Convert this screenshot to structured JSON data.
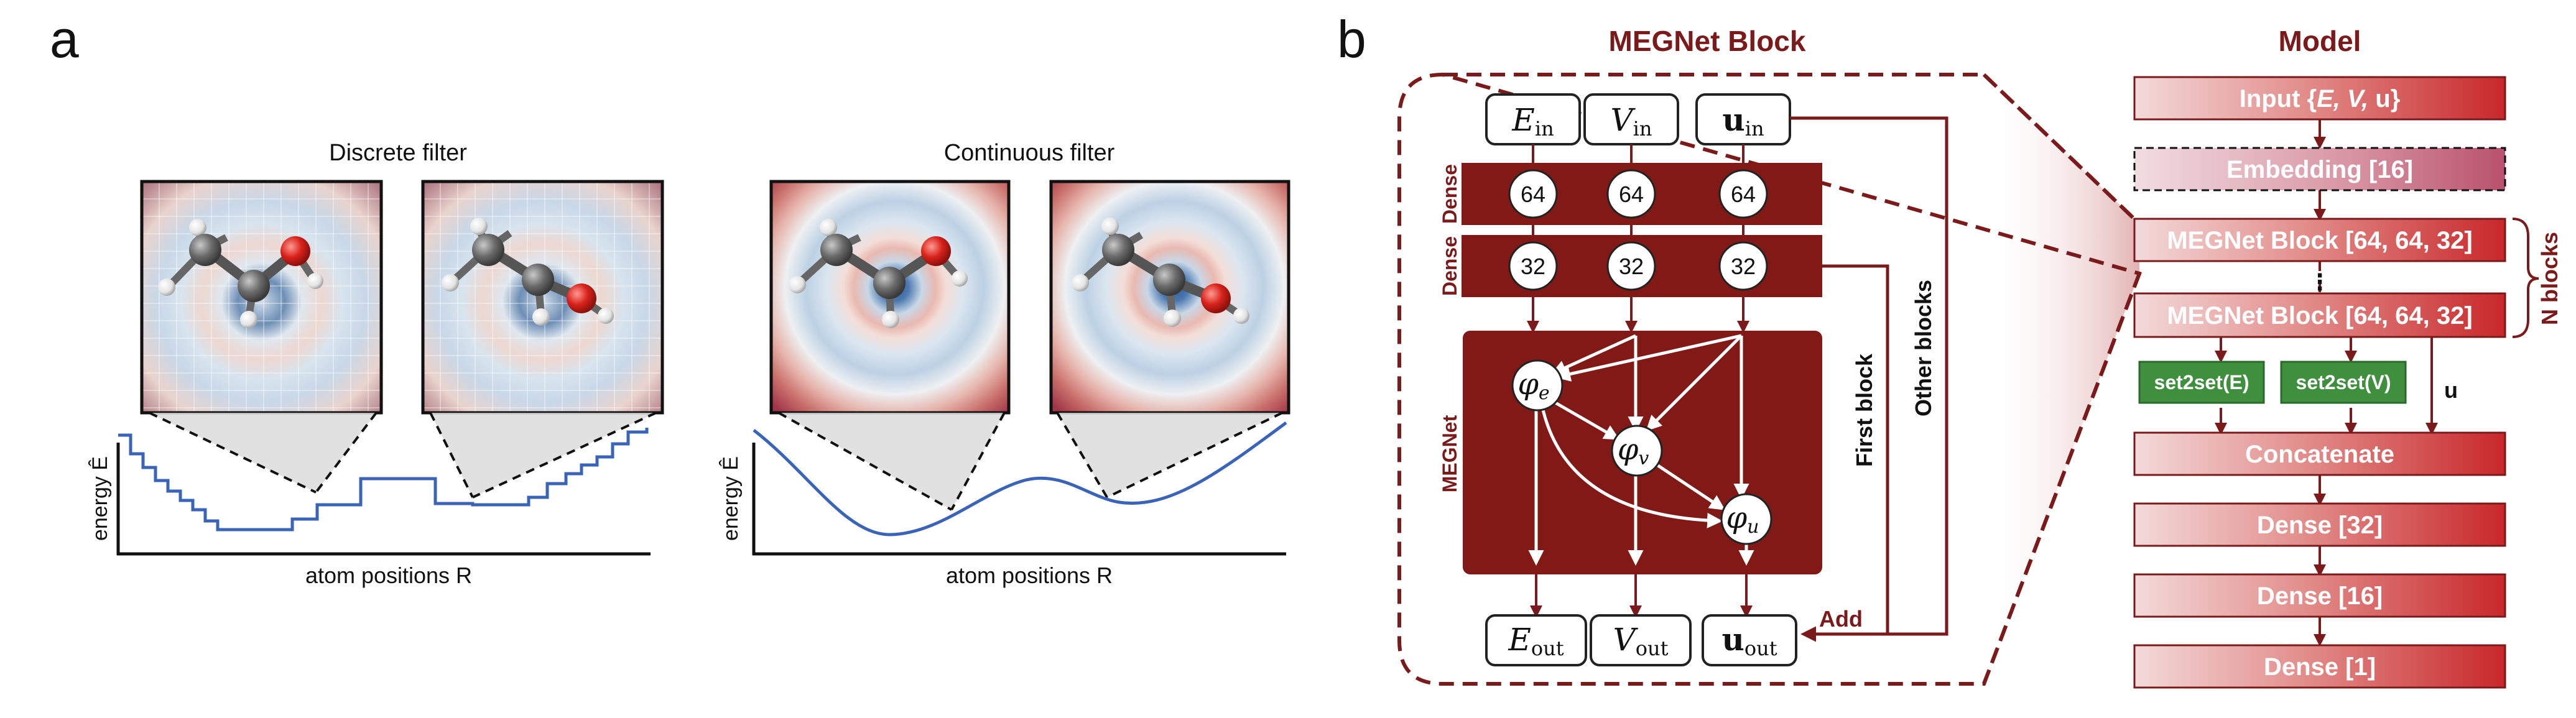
{
  "panel_a": {
    "letter": "a",
    "discrete_title": "Discrete filter",
    "continuous_title": "Continuous filter",
    "y_label": "energy Ê",
    "x_label": "atom positions R"
  },
  "panel_b": {
    "letter": "b",
    "block_title": "MEGNet Block",
    "inputs": [
      {
        "sym": "E",
        "sub": "in"
      },
      {
        "sym": "V",
        "sub": "in"
      },
      {
        "sym": "u",
        "sub": "in"
      }
    ],
    "outputs": [
      {
        "sym": "E",
        "sub": "out"
      },
      {
        "sym": "V",
        "sub": "out"
      },
      {
        "sym": "u",
        "sub": "out"
      }
    ],
    "dense1_units": [
      "64",
      "64",
      "64"
    ],
    "dense2_units": [
      "32",
      "32",
      "32"
    ],
    "dense_label": "Dense",
    "megnet_label": "MEGNet",
    "phi": [
      {
        "sym": "φ",
        "sub": "e"
      },
      {
        "sym": "φ",
        "sub": "v"
      },
      {
        "sym": "φ",
        "sub": "u"
      }
    ],
    "first_block_label": "First block",
    "other_blocks_label": "Other blocks",
    "add_label": "Add"
  },
  "model": {
    "title": "Model",
    "input_pre": "Input {",
    "input_vars": "E, V,",
    "input_post": " u}",
    "embedding": "Embedding [16]",
    "megnet_block": "MEGNet Block [64, 64, 32]",
    "dots": "⋮",
    "n_blocks": "N blocks",
    "set2set_E": "set2set(E)",
    "set2set_V": "set2set(V)",
    "u_label": "u",
    "concatenate": "Concatenate",
    "dense_layers": [
      "Dense [32]",
      "Dense [16]",
      "Dense [1]"
    ]
  },
  "colors": {
    "dark_red": "#7b1a1a",
    "block_fill": "#811a16",
    "green": "#3f8f3f",
    "curve_blue": "#3a64b8"
  }
}
